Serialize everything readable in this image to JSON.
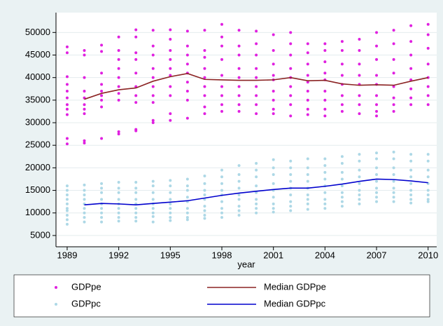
{
  "chart_data": {
    "type": "scatter-line",
    "x_label": "year",
    "x": [
      1989,
      1990,
      1991,
      1992,
      1993,
      1994,
      1995,
      1996,
      1997,
      1998,
      1999,
      2000,
      2001,
      2002,
      2003,
      2004,
      2005,
      2006,
      2007,
      2008,
      2009,
      2010
    ],
    "xlim": [
      1988.35,
      2010.5
    ],
    "xticks": [
      1989,
      1992,
      1995,
      1998,
      2001,
      2004,
      2007,
      2010
    ],
    "ylim": [
      2500,
      54400
    ],
    "yticks": [
      5000,
      10000,
      15000,
      20000,
      25000,
      30000,
      35000,
      40000,
      45000,
      50000
    ],
    "grid": true,
    "legend": "bottom",
    "series": [
      {
        "name": "GDPpe",
        "kind": "scatter",
        "color": "#e020e0",
        "values": [
          [
            46800,
            45500,
            40200,
            38500,
            37000,
            35500,
            34000,
            33000,
            31800,
            26500,
            25300
          ],
          [
            46000,
            45000,
            40000,
            37000,
            35500,
            34000,
            33000,
            32000,
            26000,
            25500
          ],
          [
            47200,
            45800,
            41000,
            38500,
            37000,
            36000,
            35000,
            33500,
            26500
          ],
          [
            49000,
            46000,
            44000,
            42000,
            40000,
            38000,
            36500,
            35000,
            28000,
            27500
          ],
          [
            50600,
            49000,
            45500,
            44000,
            41000,
            38000,
            36000,
            34500,
            28500,
            28200
          ],
          [
            50500,
            47000,
            45000,
            42000,
            40000,
            38000,
            36000,
            34500,
            30500,
            30000
          ],
          [
            50600,
            48500,
            46000,
            44000,
            42000,
            40500,
            38000,
            36000,
            32000,
            30500
          ],
          [
            50300,
            47000,
            45000,
            43000,
            41000,
            39000,
            37000,
            35000,
            31000
          ],
          [
            50500,
            46000,
            44500,
            42000,
            40000,
            38000,
            36000,
            33500,
            32000
          ],
          [
            51800,
            49000,
            47000,
            44000,
            40500,
            38000,
            36000,
            34000,
            32500
          ],
          [
            50500,
            47000,
            45000,
            42000,
            40000,
            38000,
            36000,
            34000,
            32500
          ],
          [
            50300,
            47500,
            45000,
            42000,
            40000,
            38000,
            36000,
            34000,
            32000
          ],
          [
            49500,
            46000,
            43000,
            40500,
            39500,
            37000,
            35000,
            33000,
            32000
          ],
          [
            50000,
            47500,
            45000,
            42000,
            40000,
            38000,
            36000,
            34000,
            31500
          ],
          [
            47500,
            45500,
            43000,
            40500,
            39000,
            37000,
            35000,
            33000,
            31800
          ],
          [
            47500,
            46000,
            43500,
            41000,
            39500,
            37000,
            35000,
            33000,
            31500
          ],
          [
            48000,
            46000,
            43000,
            40500,
            38500,
            36000,
            34000,
            32500
          ],
          [
            48500,
            46000,
            43000,
            40500,
            38500,
            36000,
            34000,
            32000
          ],
          [
            50000,
            47000,
            44000,
            40500,
            38500,
            36000,
            34000,
            32500,
            31500
          ],
          [
            50500,
            47500,
            44000,
            41000,
            38000,
            35500,
            34000,
            32500
          ],
          [
            51500,
            48000,
            45000,
            42000,
            39500,
            37500,
            35500,
            34000
          ],
          [
            51800,
            49500,
            46500,
            43000,
            40000,
            38000,
            36000,
            34000
          ]
        ]
      },
      {
        "name": "Median GDPpe",
        "kind": "line",
        "color": "#8b2323",
        "values": [
          null,
          35200,
          36500,
          37300,
          37700,
          39200,
          40200,
          40900,
          39600,
          39500,
          39400,
          39400,
          39500,
          40000,
          39300,
          39400,
          38600,
          38300,
          38400,
          38300,
          39200,
          40000
        ]
      },
      {
        "name": "GDPpc",
        "kind": "scatter",
        "color": "#add8e6",
        "values": [
          [
            16000,
            15000,
            14000,
            13000,
            12000,
            11000,
            10500,
            9500,
            8500,
            7500
          ],
          [
            16200,
            15000,
            14000,
            13000,
            12000,
            11000,
            10000,
            9000,
            8000
          ],
          [
            16500,
            15500,
            14500,
            13000,
            12000,
            11000,
            10000,
            9000,
            8000
          ],
          [
            16800,
            15500,
            14500,
            13000,
            12000,
            11000,
            10000,
            9000,
            8200
          ],
          [
            16800,
            15500,
            14500,
            13000,
            12000,
            11000,
            10000,
            9000,
            8200
          ],
          [
            17000,
            16000,
            14500,
            13000,
            12000,
            11000,
            10000,
            9200,
            8000
          ],
          [
            17200,
            16000,
            14500,
            13000,
            12000,
            11000,
            10000,
            9000,
            8300
          ],
          [
            17500,
            16000,
            15000,
            13500,
            12500,
            11000,
            10000,
            9000,
            8500
          ],
          [
            18200,
            16500,
            15000,
            14000,
            13000,
            11500,
            10500,
            9500,
            8800
          ],
          [
            19500,
            18000,
            16500,
            15000,
            14000,
            12500,
            11000,
            10000,
            9000
          ],
          [
            20500,
            18500,
            17000,
            15500,
            14000,
            13000,
            11500,
            10500,
            9500
          ],
          [
            21000,
            19500,
            18000,
            16000,
            14500,
            13000,
            12000,
            11000,
            10000
          ],
          [
            21800,
            20000,
            18500,
            16500,
            15000,
            13500,
            12000,
            11000,
            10200
          ],
          [
            21500,
            20000,
            18500,
            17000,
            15500,
            14000,
            12500,
            11500,
            10500
          ],
          [
            22000,
            20000,
            18500,
            17000,
            15500,
            14000,
            13000,
            12000,
            10800
          ],
          [
            22000,
            20500,
            19000,
            17500,
            16000,
            14500,
            13000,
            12000,
            11000
          ],
          [
            22500,
            21000,
            19000,
            17500,
            16000,
            14500,
            13500,
            12500,
            11500
          ],
          [
            23000,
            21500,
            19500,
            18000,
            16500,
            15000,
            14000,
            13000,
            12000
          ],
          [
            23300,
            22000,
            20000,
            18500,
            17000,
            15500,
            14500,
            13500,
            12500
          ],
          [
            23500,
            22000,
            20000,
            18500,
            17000,
            15500,
            14500,
            13500,
            12500
          ],
          [
            23000,
            21500,
            19500,
            18000,
            16500,
            15000,
            14000,
            13000,
            12200
          ],
          [
            23000,
            21500,
            19500,
            18000,
            16500,
            15000,
            14000,
            13000,
            12500
          ]
        ]
      },
      {
        "name": "Median GDPpc",
        "kind": "line",
        "color": "#0000cd",
        "values": [
          null,
          11800,
          12100,
          12000,
          11800,
          12100,
          12400,
          12700,
          13300,
          13900,
          14400,
          14800,
          15200,
          15500,
          15500,
          15900,
          16400,
          17000,
          17500,
          17400,
          17100,
          16700
        ]
      }
    ]
  }
}
